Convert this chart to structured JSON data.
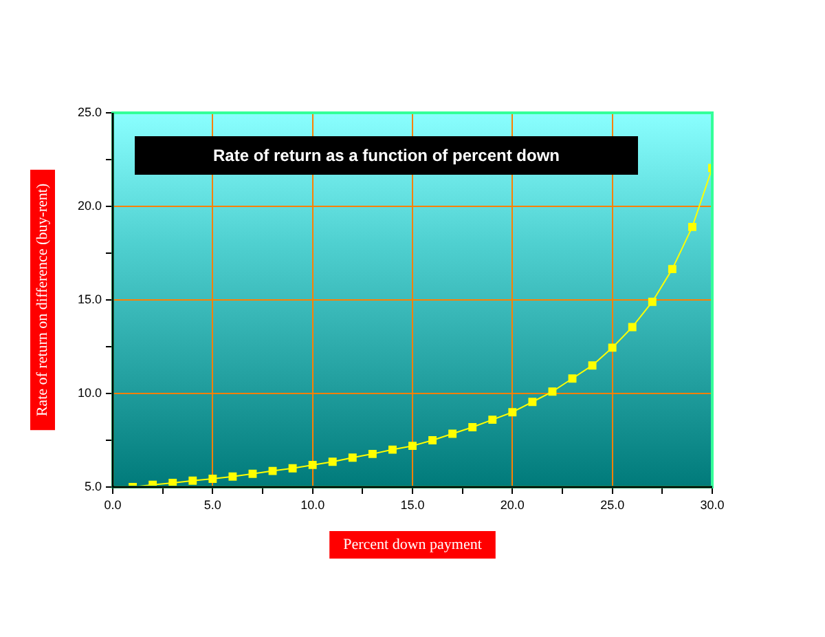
{
  "chart_data": {
    "type": "line",
    "title": "Rate of return as a function of percent down",
    "xlabel": "Percent down payment",
    "ylabel": "Rate of return on difference (buy-rent)",
    "x": [
      1,
      2,
      3,
      4,
      5,
      6,
      7,
      8,
      9,
      10,
      11,
      12,
      13,
      14,
      15,
      16,
      17,
      18,
      19,
      20,
      21,
      22,
      23,
      24,
      25,
      26,
      27,
      28,
      29,
      30
    ],
    "series": [
      {
        "color": "#ffff00",
        "values": [
          5.0,
          5.12,
          5.22,
          5.34,
          5.44,
          5.56,
          5.71,
          5.86,
          6.0,
          6.18,
          6.35,
          6.57,
          6.77,
          7.0,
          7.2,
          7.5,
          7.85,
          8.2,
          8.6,
          9.0,
          9.55,
          10.1,
          10.8,
          11.5,
          12.45,
          13.55,
          14.9,
          16.65,
          18.9,
          22.05
        ]
      }
    ],
    "xlim": [
      0,
      30
    ],
    "ylim": [
      5,
      25
    ],
    "xticks": [
      {
        "value": 0,
        "label": "0.0"
      },
      {
        "value": 2.5,
        "label": null
      },
      {
        "value": 5,
        "label": "5.0"
      },
      {
        "value": 7.5,
        "label": null
      },
      {
        "value": 10,
        "label": "10.0"
      },
      {
        "value": 12.5,
        "label": null
      },
      {
        "value": 15,
        "label": "15.0"
      },
      {
        "value": 17.5,
        "label": null
      },
      {
        "value": 20,
        "label": "20.0"
      },
      {
        "value": 22.5,
        "label": null
      },
      {
        "value": 25,
        "label": "25.0"
      },
      {
        "value": 27.5,
        "label": null
      },
      {
        "value": 30,
        "label": "30.0"
      }
    ],
    "yticks": [
      {
        "value": 5,
        "label": "5.0"
      },
      {
        "value": 7.5,
        "label": null
      },
      {
        "value": 10,
        "label": "10.0"
      },
      {
        "value": 12.5,
        "label": null
      },
      {
        "value": 15,
        "label": "15.0"
      },
      {
        "value": 17.5,
        "label": null
      },
      {
        "value": 20,
        "label": "20.0"
      },
      {
        "value": 22.5,
        "label": null
      },
      {
        "value": 25,
        "label": "25.0"
      }
    ],
    "grid": true,
    "marker": "square",
    "line_style": "solid"
  }
}
